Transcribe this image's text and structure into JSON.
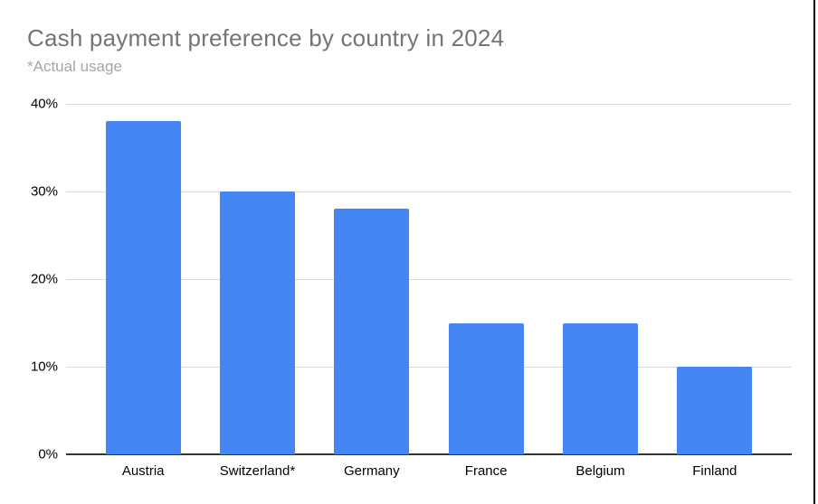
{
  "header": {
    "title": "Cash payment preference by country in 2024",
    "subtitle": "*Actual usage"
  },
  "colors": {
    "bar": "#4486f4",
    "gridline": "#d9d9d9",
    "baseline": "#333333",
    "title": "#757575",
    "subtitle": "#a6a6a6",
    "axis_text": "#000000",
    "background": "#ffffff",
    "right_edge_line": "#000000"
  },
  "chart_data": {
    "type": "bar",
    "title": "Cash payment preference by country in 2024",
    "subtitle": "*Actual usage",
    "categories": [
      "Austria",
      "Switzerland*",
      "Germany",
      "France",
      "Belgium",
      "Finland"
    ],
    "values": [
      38,
      30,
      28,
      15,
      15,
      10
    ],
    "xlabel": "",
    "ylabel": "",
    "ylim": [
      0,
      40
    ],
    "yticks": [
      0,
      10,
      20,
      30,
      40
    ],
    "ytick_labels": [
      "0%",
      "10%",
      "20%",
      "30%",
      "40%"
    ],
    "grid": true,
    "legend_position": "none",
    "bar_color": "#4486f4"
  }
}
